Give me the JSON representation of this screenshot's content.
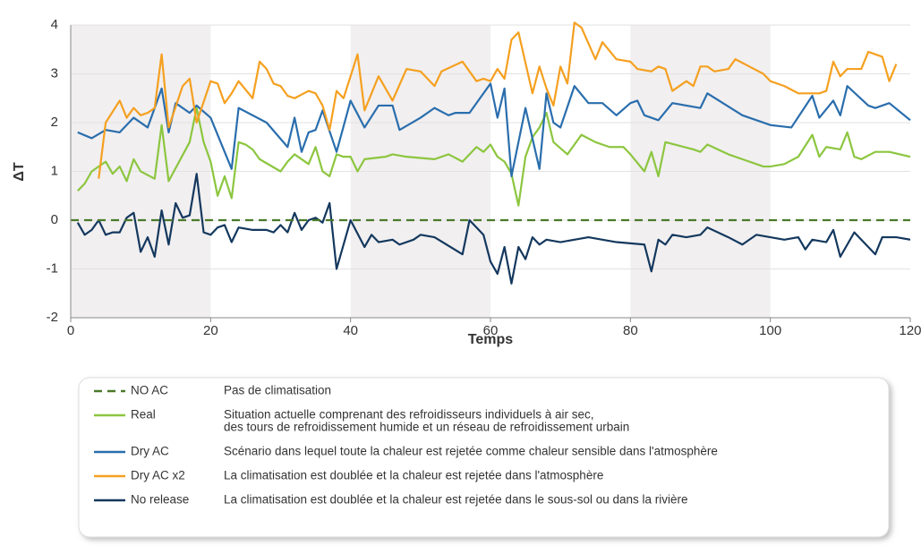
{
  "chart_data": {
    "type": "line",
    "xlabel": "Temps",
    "ylabel": "ΔT",
    "xlim": [
      0,
      120
    ],
    "ylim": [
      -2,
      4
    ],
    "xticks": [
      0,
      20,
      40,
      60,
      80,
      100,
      120
    ],
    "yticks": [
      -2,
      -1,
      0,
      1,
      2,
      3,
      4
    ],
    "grid": true,
    "series": [
      {
        "name": "NO AC",
        "description": [
          "Pas de climatisation"
        ],
        "color": "#4a7a2a",
        "dashed": true,
        "x": [
          0,
          120
        ],
        "values": [
          0,
          0
        ]
      },
      {
        "name": "Real",
        "description": [
          "Situation actuelle comprenant des refroidisseurs individuels à air sec,",
          "des tours de refroidissement humide et un réseau de refroidissement urbain"
        ],
        "color": "#8cc63f",
        "x": [
          1,
          2,
          3,
          5,
          6,
          7,
          8,
          9,
          10,
          12,
          13,
          14,
          17,
          18,
          19,
          20,
          21,
          22,
          23,
          24,
          25,
          26,
          27,
          30,
          31,
          32,
          34,
          35,
          36,
          37,
          38,
          39,
          40,
          41,
          42,
          45,
          46,
          48,
          52,
          54,
          56,
          58,
          59,
          60,
          61,
          62,
          63,
          64,
          65,
          66,
          67,
          68,
          69,
          71,
          73,
          75,
          77,
          79,
          80,
          82,
          83,
          84,
          85,
          89,
          90,
          91,
          94,
          96,
          98,
          99,
          100,
          102,
          104,
          106,
          107,
          108,
          110,
          111,
          112,
          113,
          115,
          117,
          120
        ],
        "values": [
          0.6,
          0.75,
          1.0,
          1.2,
          0.95,
          1.1,
          0.8,
          1.25,
          1.0,
          0.85,
          1.95,
          0.8,
          1.6,
          2.3,
          1.6,
          1.2,
          0.5,
          0.9,
          0.45,
          1.6,
          1.55,
          1.45,
          1.25,
          1.0,
          1.2,
          1.35,
          1.15,
          1.5,
          1.0,
          0.9,
          1.35,
          1.3,
          1.3,
          1.0,
          1.25,
          1.3,
          1.35,
          1.3,
          1.25,
          1.35,
          1.2,
          1.5,
          1.4,
          1.55,
          1.3,
          1.2,
          0.95,
          0.3,
          1.3,
          1.7,
          1.9,
          2.2,
          1.6,
          1.35,
          1.75,
          1.6,
          1.5,
          1.5,
          1.35,
          1.0,
          1.4,
          0.9,
          1.6,
          1.45,
          1.4,
          1.55,
          1.35,
          1.25,
          1.15,
          1.1,
          1.1,
          1.15,
          1.3,
          1.75,
          1.3,
          1.5,
          1.45,
          1.8,
          1.3,
          1.25,
          1.4,
          1.4,
          1.3
        ]
      },
      {
        "name": "Dry AC",
        "description": [
          "Scénario dans lequel toute la chaleur est rejetée comme chaleur sensible dans l'atmosphère"
        ],
        "color": "#2a6ead",
        "x": [
          1,
          3,
          5,
          7,
          9,
          11,
          13,
          14,
          15,
          17,
          18,
          20,
          23,
          24,
          28,
          31,
          32,
          33,
          34,
          35,
          36,
          38,
          40,
          42,
          44,
          46,
          47,
          50,
          52,
          54,
          55,
          57,
          60,
          61,
          62,
          63,
          65,
          67,
          68,
          69,
          70,
          72,
          74,
          76,
          78,
          80,
          81,
          82,
          84,
          86,
          90,
          91,
          96,
          100,
          103,
          106,
          107,
          109,
          110,
          111,
          114,
          115,
          117,
          120
        ],
        "values": [
          1.8,
          1.68,
          1.85,
          1.8,
          2.1,
          1.9,
          2.7,
          1.8,
          2.4,
          2.2,
          2.35,
          2.1,
          1.05,
          2.3,
          2.0,
          1.5,
          2.1,
          1.4,
          1.8,
          1.85,
          2.25,
          1.4,
          2.45,
          1.9,
          2.35,
          2.35,
          1.85,
          2.1,
          2.3,
          2.15,
          2.2,
          2.2,
          2.8,
          2.1,
          2.7,
          0.9,
          2.3,
          1.05,
          2.6,
          2.0,
          1.9,
          2.75,
          2.4,
          2.4,
          2.15,
          2.4,
          2.45,
          2.15,
          2.05,
          2.4,
          2.3,
          2.6,
          2.15,
          1.95,
          1.9,
          2.55,
          2.1,
          2.45,
          2.15,
          2.75,
          2.35,
          2.3,
          2.4,
          2.05
        ]
      },
      {
        "name": "Dry AC x2",
        "description": [
          "La climatisation est doublée et la chaleur est rejetée dans l'atmosphère"
        ],
        "color": "#f5a020",
        "x": [
          4,
          5,
          7,
          8,
          9,
          10,
          11,
          12,
          13,
          14,
          16,
          17,
          18,
          20,
          21,
          22,
          23,
          24,
          26,
          27,
          28,
          29,
          30,
          31,
          32,
          34,
          35,
          36,
          37,
          38,
          39,
          41,
          42,
          44,
          46,
          48,
          50,
          52,
          53,
          56,
          58,
          59,
          60,
          61,
          62,
          63,
          64,
          66,
          67,
          68,
          69,
          70,
          71,
          72,
          73,
          75,
          76,
          78,
          80,
          81,
          83,
          84,
          85,
          86,
          88,
          89,
          90,
          91,
          92,
          94,
          95,
          97,
          99,
          100,
          102,
          104,
          107,
          108,
          109,
          110,
          111,
          113,
          114,
          116,
          117,
          118
        ],
        "values": [
          0.85,
          2.0,
          2.45,
          2.1,
          2.3,
          2.15,
          2.2,
          2.3,
          3.4,
          1.9,
          2.75,
          2.9,
          2.0,
          2.85,
          2.8,
          2.4,
          2.6,
          2.85,
          2.5,
          3.25,
          3.1,
          2.8,
          2.75,
          2.55,
          2.5,
          2.65,
          2.6,
          2.35,
          1.85,
          2.65,
          2.5,
          3.4,
          2.25,
          2.95,
          2.45,
          3.1,
          3.05,
          2.75,
          3.05,
          3.25,
          2.85,
          2.9,
          2.85,
          3.1,
          2.9,
          3.7,
          3.85,
          2.6,
          3.15,
          2.7,
          2.35,
          3.15,
          2.8,
          4.05,
          3.95,
          3.3,
          3.65,
          3.3,
          3.25,
          3.1,
          3.05,
          3.15,
          3.1,
          2.65,
          2.85,
          2.75,
          3.15,
          3.15,
          3.05,
          3.1,
          3.3,
          3.15,
          3.0,
          2.85,
          2.75,
          2.6,
          2.6,
          2.65,
          3.25,
          2.95,
          3.1,
          3.1,
          3.45,
          3.35,
          2.85,
          3.2
        ]
      },
      {
        "name": "No release",
        "description": [
          "La climatisation est doublée et la chaleur est rejetée dans le sous-sol ou dans la rivière"
        ],
        "color": "#14385e",
        "x": [
          1,
          2,
          3,
          4,
          5,
          6,
          7,
          8,
          9,
          10,
          11,
          12,
          13,
          14,
          15,
          16,
          17,
          18,
          19,
          20,
          21,
          22,
          23,
          24,
          26,
          28,
          29,
          30,
          31,
          32,
          33,
          34,
          35,
          36,
          37,
          38,
          39,
          40,
          42,
          43,
          44,
          46,
          47,
          49,
          50,
          52,
          56,
          57,
          59,
          60,
          61,
          62,
          63,
          64,
          65,
          66,
          67,
          68,
          70,
          72,
          74,
          78,
          82,
          83,
          84,
          85,
          86,
          88,
          90,
          91,
          94,
          96,
          98,
          100,
          102,
          104,
          105,
          106,
          108,
          109,
          110,
          111,
          112,
          115,
          116,
          118,
          120
        ],
        "values": [
          -0.05,
          -0.3,
          -0.2,
          0.0,
          -0.3,
          -0.25,
          -0.25,
          0.05,
          0.15,
          -0.65,
          -0.35,
          -0.75,
          0.2,
          -0.5,
          0.35,
          0.05,
          0.1,
          0.95,
          -0.25,
          -0.3,
          -0.15,
          -0.1,
          -0.45,
          -0.15,
          -0.2,
          -0.2,
          -0.25,
          -0.1,
          -0.25,
          0.15,
          -0.2,
          0.0,
          0.05,
          -0.05,
          0.35,
          -1.0,
          -0.5,
          0.0,
          -0.55,
          -0.3,
          -0.45,
          -0.4,
          -0.5,
          -0.4,
          -0.3,
          -0.35,
          -0.7,
          0.0,
          -0.3,
          -0.85,
          -1.1,
          -0.55,
          -1.3,
          -0.55,
          -0.8,
          -0.35,
          -0.5,
          -0.4,
          -0.45,
          -0.4,
          -0.35,
          -0.45,
          -0.5,
          -1.05,
          -0.4,
          -0.5,
          -0.3,
          -0.35,
          -0.3,
          -0.15,
          -0.35,
          -0.5,
          -0.3,
          -0.35,
          -0.4,
          -0.35,
          -0.6,
          -0.4,
          -0.45,
          -0.2,
          -0.75,
          -0.5,
          -0.25,
          -0.7,
          -0.35,
          -0.35,
          -0.4
        ]
      }
    ]
  }
}
